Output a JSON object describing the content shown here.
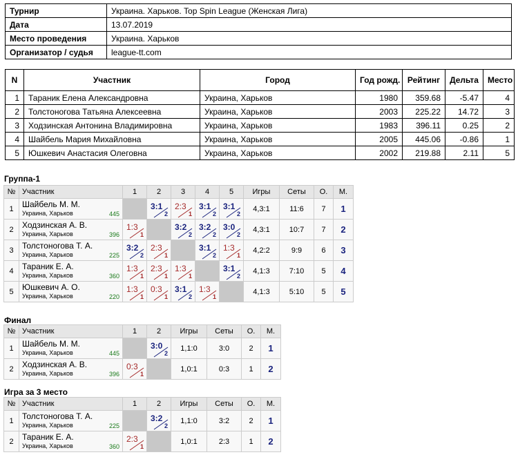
{
  "info": [
    [
      "Турнир",
      "Украина. Харьков. Top Spin League (Женская Лига)"
    ],
    [
      "Дата",
      "13.07.2019"
    ],
    [
      "Место проведения",
      "Украина. Харьков"
    ],
    [
      "Организатор / судья",
      "league-tt.com"
    ]
  ],
  "participants": {
    "header": [
      "N",
      "Участник",
      "Город",
      "Год рожд.",
      "Рейтинг",
      "Дельта",
      "Место"
    ],
    "rows": [
      [
        "1",
        "Тараник Елена Александровна",
        "Украина, Харьков",
        "1980",
        "359.68",
        "-5.47",
        "4"
      ],
      [
        "2",
        "Толстоногова Татьяна Алексеевна",
        "Украина, Харьков",
        "2003",
        "225.22",
        "14.72",
        "3"
      ],
      [
        "3",
        "Ходзинская Антонина Владимировна",
        "Украина, Харьков",
        "1983",
        "396.11",
        "0.25",
        "2"
      ],
      [
        "4",
        "Шайбель Мария Михайловна",
        "Украина, Харьков",
        "2005",
        "445.06",
        "-0.86",
        "1"
      ],
      [
        "5",
        "Юшкевич Анастасия Олеговна",
        "Украина, Харьков",
        "2002",
        "219.88",
        "2.11",
        "5"
      ]
    ]
  },
  "groups": [
    {
      "title": "Группа-1",
      "header": [
        "№",
        "Участник",
        "1",
        "2",
        "3",
        "4",
        "5",
        "Игры",
        "Сеты",
        "О.",
        "М."
      ],
      "rows": [
        {
          "n": "1",
          "name": "Шайбель М. М.",
          "city": "Украина, Харьков",
          "rating": "445",
          "cells": [
            null,
            {
              "score": "3:1",
              "pts": "2"
            },
            {
              "score": "2:3",
              "pts": "1"
            },
            {
              "score": "3:1",
              "pts": "2"
            },
            {
              "score": "3:1",
              "pts": "2"
            }
          ],
          "games": "4,3:1",
          "sets": "11:6",
          "points": "7",
          "place": "1"
        },
        {
          "n": "2",
          "name": "Ходзинская А. В.",
          "city": "Украина, Харьков",
          "rating": "396",
          "cells": [
            {
              "score": "1:3",
              "pts": "1"
            },
            null,
            {
              "score": "3:2",
              "pts": "2"
            },
            {
              "score": "3:2",
              "pts": "2"
            },
            {
              "score": "3:0",
              "pts": "2"
            }
          ],
          "games": "4,3:1",
          "sets": "10:7",
          "points": "7",
          "place": "2"
        },
        {
          "n": "3",
          "name": "Толстоногова Т. А.",
          "city": "Украина, Харьков",
          "rating": "225",
          "cells": [
            {
              "score": "3:2",
              "pts": "2"
            },
            {
              "score": "2:3",
              "pts": "1"
            },
            null,
            {
              "score": "3:1",
              "pts": "2"
            },
            {
              "score": "1:3",
              "pts": "1"
            }
          ],
          "games": "4,2:2",
          "sets": "9:9",
          "points": "6",
          "place": "3"
        },
        {
          "n": "4",
          "name": "Тараник Е. А.",
          "city": "Украина, Харьков",
          "rating": "360",
          "cells": [
            {
              "score": "1:3",
              "pts": "1"
            },
            {
              "score": "2:3",
              "pts": "1"
            },
            {
              "score": "1:3",
              "pts": "1"
            },
            null,
            {
              "score": "3:1",
              "pts": "2"
            }
          ],
          "games": "4,1:3",
          "sets": "7:10",
          "points": "5",
          "place": "4"
        },
        {
          "n": "5",
          "name": "Юшкевич А. О.",
          "city": "Украина, Харьков",
          "rating": "220",
          "cells": [
            {
              "score": "1:3",
              "pts": "1"
            },
            {
              "score": "0:3",
              "pts": "1"
            },
            {
              "score": "3:1",
              "pts": "2"
            },
            {
              "score": "1:3",
              "pts": "1"
            },
            null
          ],
          "games": "4,1:3",
          "sets": "5:10",
          "points": "5",
          "place": "5"
        }
      ]
    },
    {
      "title": "Финал",
      "header": [
        "№",
        "Участник",
        "1",
        "2",
        "Игры",
        "Сеты",
        "О.",
        "М."
      ],
      "rows": [
        {
          "n": "1",
          "name": "Шайбель М. М.",
          "city": "Украина, Харьков",
          "rating": "445",
          "cells": [
            null,
            {
              "score": "3:0",
              "pts": "2"
            }
          ],
          "games": "1,1:0",
          "sets": "3:0",
          "points": "2",
          "place": "1"
        },
        {
          "n": "2",
          "name": "Ходзинская А. В.",
          "city": "Украина, Харьков",
          "rating": "396",
          "cells": [
            {
              "score": "0:3",
              "pts": "1"
            },
            null
          ],
          "games": "1,0:1",
          "sets": "0:3",
          "points": "1",
          "place": "2"
        }
      ]
    },
    {
      "title": "Игра за 3 место",
      "header": [
        "№",
        "Участник",
        "1",
        "2",
        "Игры",
        "Сеты",
        "О.",
        "М."
      ],
      "rows": [
        {
          "n": "1",
          "name": "Толстоногова Т. А.",
          "city": "Украина, Харьков",
          "rating": "225",
          "cells": [
            null,
            {
              "score": "3:2",
              "pts": "2"
            }
          ],
          "games": "1,1:0",
          "sets": "3:2",
          "points": "2",
          "place": "1"
        },
        {
          "n": "2",
          "name": "Тараник Е. А.",
          "city": "Украина, Харьков",
          "rating": "360",
          "cells": [
            {
              "score": "2:3",
              "pts": "1"
            },
            null
          ],
          "games": "1,0:1",
          "sets": "2:3",
          "points": "1",
          "place": "2"
        }
      ]
    }
  ]
}
